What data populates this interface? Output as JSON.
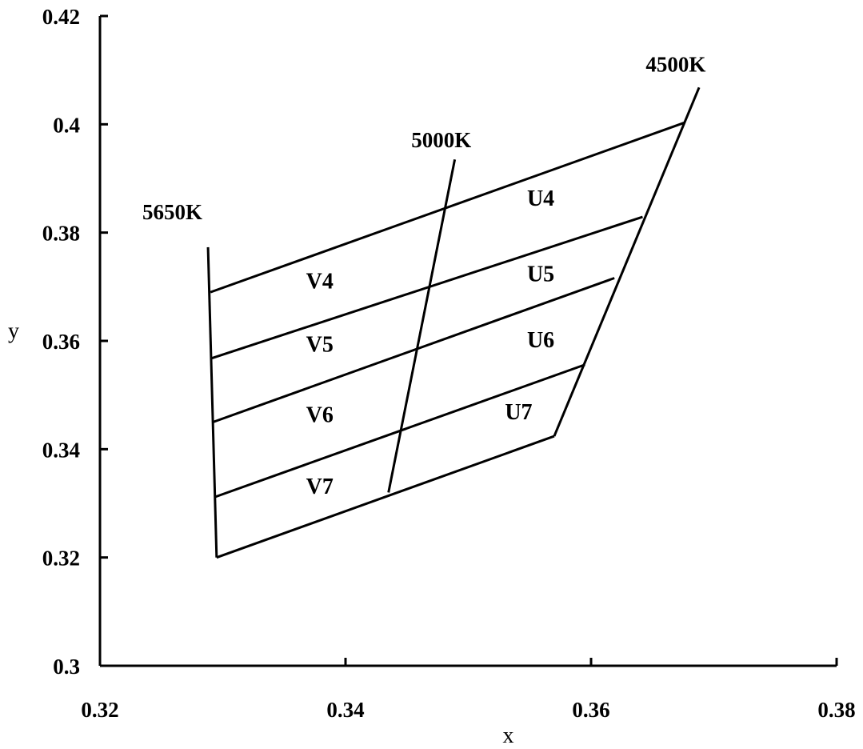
{
  "chart_data": {
    "type": "line",
    "title": "",
    "xlabel": "x",
    "ylabel": "y",
    "xlim": [
      0.32,
      0.38
    ],
    "ylim": [
      0.3,
      0.42
    ],
    "x_ticks": [
      "0.32",
      "0.34",
      "0.36",
      "0.38"
    ],
    "y_ticks": [
      "0.3",
      "0.32",
      "0.34",
      "0.36",
      "0.38",
      "0.4",
      "0.42"
    ],
    "grid": false,
    "cct_lines": [
      {
        "label": "5650K",
        "points": [
          [
            0.3288,
            0.3773
          ],
          [
            0.3295,
            0.32
          ]
        ],
        "label_at": [
          0.3259,
          0.3825
        ]
      },
      {
        "label": "5000K",
        "points": [
          [
            0.3489,
            0.3935
          ],
          [
            0.3435,
            0.332
          ]
        ],
        "label_at": [
          0.3478,
          0.3958
        ]
      },
      {
        "label": "4500K",
        "points": [
          [
            0.3688,
            0.4068
          ],
          [
            0.357,
            0.3424
          ]
        ],
        "label_at": [
          0.3669,
          0.4097
        ]
      }
    ],
    "isolines": [
      [
        [
          0.329,
          0.369
        ],
        [
          0.3676,
          0.4003
        ]
      ],
      [
        [
          0.3291,
          0.3568
        ],
        [
          0.3642,
          0.3829
        ]
      ],
      [
        [
          0.3292,
          0.345
        ],
        [
          0.3619,
          0.3716
        ]
      ],
      [
        [
          0.3294,
          0.3312
        ],
        [
          0.3595,
          0.3556
        ]
      ],
      [
        [
          0.3295,
          0.32
        ],
        [
          0.357,
          0.3424
        ]
      ]
    ],
    "cells": [
      {
        "label": "V4",
        "at": [
          0.3379,
          0.3697
        ]
      },
      {
        "label": "V5",
        "at": [
          0.3379,
          0.358
        ]
      },
      {
        "label": "V6",
        "at": [
          0.3379,
          0.345
        ]
      },
      {
        "label": "V7",
        "at": [
          0.3379,
          0.3318
        ]
      },
      {
        "label": "U4",
        "at": [
          0.3559,
          0.385
        ]
      },
      {
        "label": "U5",
        "at": [
          0.3559,
          0.371
        ]
      },
      {
        "label": "U6",
        "at": [
          0.3559,
          0.3588
        ]
      },
      {
        "label": "U7",
        "at": [
          0.3541,
          0.3455
        ]
      }
    ]
  }
}
